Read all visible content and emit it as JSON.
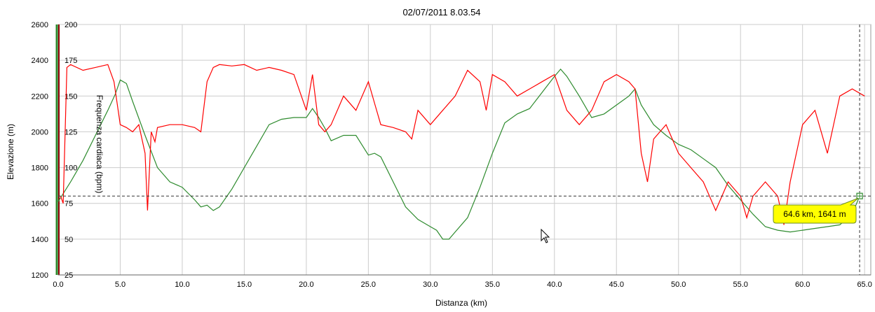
{
  "chart_data": {
    "type": "line",
    "title": "02/07/2011 8.03.54",
    "xlabel": "Distanza (km)",
    "ylabel_left": "Elevazione (m)",
    "ylabel_right": "Frequenza cardiaca (bpm)",
    "xlim": [
      0,
      65.5
    ],
    "ylim_left": [
      1200,
      2600
    ],
    "ylim_right": [
      25,
      200
    ],
    "x_ticks": [
      "0.0",
      "5.0",
      "10.0",
      "15.0",
      "20.0",
      "25.0",
      "30.0",
      "35.0",
      "40.0",
      "45.0",
      "50.0",
      "55.0",
      "60.0",
      "65.0"
    ],
    "y_left_ticks": [
      "1200",
      "1400",
      "1600",
      "1800",
      "2000",
      "2200",
      "2400",
      "2600"
    ],
    "y_right_ticks": [
      "25",
      "50",
      "75",
      "100",
      "125",
      "150",
      "175",
      "200"
    ],
    "grid": true,
    "series": [
      {
        "axis": "left",
        "color": "#2e8b2e",
        "x": [
          0,
          1,
          2,
          3,
          4,
          4.6,
          5,
          5.5,
          6,
          7,
          8,
          9,
          10,
          11,
          11.5,
          12,
          12.5,
          13,
          14,
          15,
          16,
          17,
          18,
          19,
          20,
          20.5,
          21,
          21.5,
          22,
          23,
          24,
          25,
          25.5,
          26,
          27,
          28,
          29,
          30,
          30.5,
          31,
          31.5,
          32,
          33,
          34,
          35,
          36,
          37,
          38,
          39,
          40,
          40.5,
          41,
          42,
          43,
          44,
          45,
          46,
          46.5,
          47,
          48,
          49,
          50,
          51,
          52,
          53,
          54,
          55,
          56,
          57,
          58,
          59,
          60,
          61,
          62,
          63,
          64,
          64.6
        ],
        "values": [
          1610,
          1720,
          1840,
          1980,
          2120,
          2210,
          2290,
          2270,
          2170,
          1980,
          1800,
          1720,
          1690,
          1620,
          1580,
          1590,
          1560,
          1580,
          1680,
          1800,
          1920,
          2040,
          2070,
          2080,
          2080,
          2130,
          2080,
          2020,
          1950,
          1980,
          1980,
          1870,
          1880,
          1860,
          1720,
          1580,
          1510,
          1470,
          1450,
          1400,
          1400,
          1440,
          1520,
          1690,
          1880,
          2050,
          2100,
          2130,
          2220,
          2310,
          2350,
          2310,
          2200,
          2080,
          2100,
          2150,
          2200,
          2240,
          2150,
          2040,
          1980,
          1930,
          1900,
          1850,
          1800,
          1700,
          1620,
          1540,
          1470,
          1450,
          1440,
          1450,
          1460,
          1470,
          1480,
          1540,
          1641
        ]
      },
      {
        "axis": "right",
        "color": "#ff0000",
        "x": [
          0.2,
          0.4,
          0.5,
          0.7,
          1,
          2,
          3,
          4,
          4.5,
          5,
          5.5,
          6,
          6.5,
          7,
          7.2,
          7.5,
          7.8,
          8,
          9,
          10,
          11,
          11.5,
          12,
          12.5,
          13,
          14,
          15,
          16,
          17,
          18,
          19,
          20,
          20.5,
          21,
          21.5,
          22,
          23,
          24,
          25,
          25.5,
          26,
          27,
          28,
          28.5,
          29,
          30,
          31,
          32,
          33,
          34,
          34.5,
          35,
          36,
          37,
          38,
          39,
          40,
          41,
          42,
          43,
          44,
          45,
          46,
          46.5,
          47,
          47.5,
          48,
          49,
          50,
          51,
          52,
          52.5,
          53,
          54,
          55,
          55.5,
          56,
          57,
          58,
          58.5,
          59,
          60,
          61,
          62,
          63,
          64,
          65
        ],
        "values": [
          80,
          75,
          105,
          170,
          172,
          168,
          170,
          172,
          160,
          130,
          128,
          125,
          130,
          110,
          70,
          125,
          118,
          128,
          130,
          130,
          128,
          125,
          160,
          170,
          172,
          171,
          172,
          168,
          170,
          168,
          165,
          140,
          165,
          130,
          125,
          130,
          150,
          140,
          160,
          145,
          130,
          128,
          125,
          120,
          140,
          130,
          140,
          150,
          168,
          160,
          140,
          165,
          160,
          150,
          155,
          160,
          165,
          140,
          130,
          140,
          160,
          165,
          160,
          155,
          110,
          90,
          120,
          130,
          110,
          100,
          90,
          80,
          70,
          90,
          80,
          65,
          80,
          90,
          80,
          60,
          90,
          130,
          140,
          110,
          150,
          155,
          150
        ]
      }
    ],
    "marker": {
      "label": "64.6 km, 1641 m",
      "x": 64.6,
      "y": 1641
    }
  },
  "colors": {
    "elevation_line": "#2e8b2e",
    "heart_rate_line": "#ff0000",
    "callout_fill": "#ffff00",
    "left_axis": "#2e8b2e",
    "right_axis": "#8b0000"
  }
}
